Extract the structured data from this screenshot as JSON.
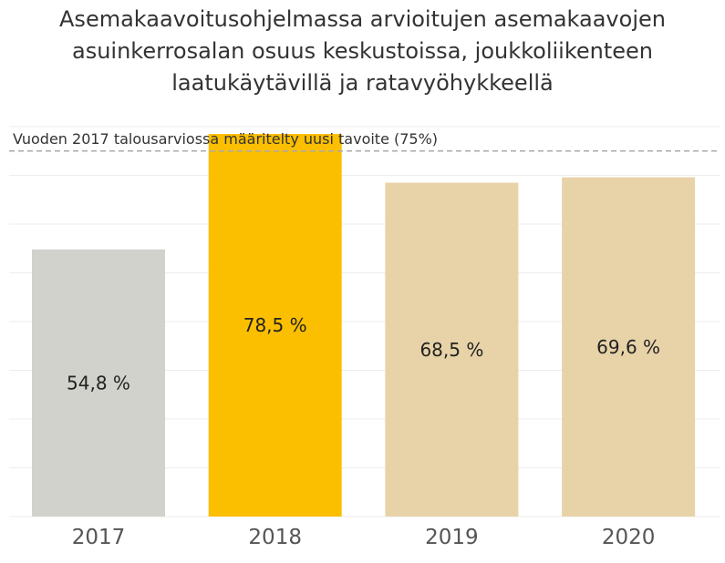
{
  "chart_data": {
    "type": "bar",
    "title": "Asemakaavoitusohjelmassa arvioitujen asemakaavojen\nasuinkerrosalan osuus keskustoissa, joukkoliikenteen\nlaatukäytävillä ja ratavyöhykkeellä",
    "categories": [
      "2017",
      "2018",
      "2019",
      "2020"
    ],
    "values": [
      54.8,
      78.5,
      68.5,
      69.6
    ],
    "value_labels": [
      "54,8 %",
      "78,5 %",
      "68,5 %",
      "69,6 %"
    ],
    "bar_colors": [
      "#d0d2cb",
      "#fbbf00",
      "#e8d3a8",
      "#e8d3a8"
    ],
    "ylim": [
      0,
      80
    ],
    "grid": true,
    "reference_line": {
      "value": 75,
      "label": "Vuoden 2017 talousarviossa määritelty uusi tavoite (75%)",
      "color": "#aaaaaa"
    }
  }
}
